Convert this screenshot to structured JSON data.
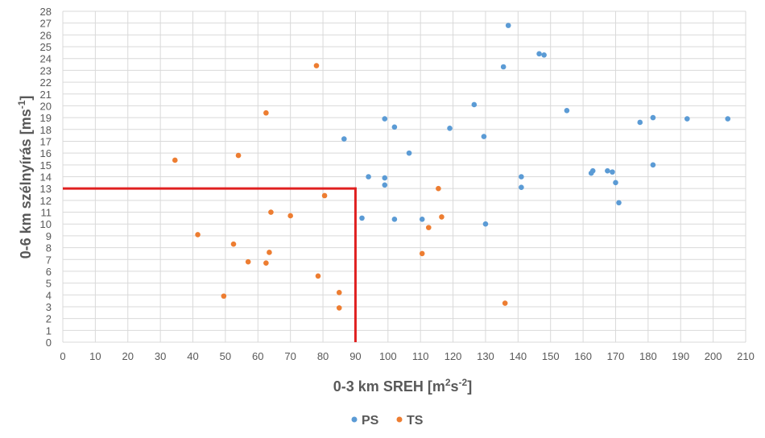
{
  "chart_data": {
    "type": "scatter",
    "title": "",
    "xlabel": "0-3 km SREH [m²s⁻²]",
    "xlabel_parts": {
      "prefix": "0-3 km SREH [m",
      "sup1": "2",
      "mid": "s",
      "sup2": "-2",
      "suffix": "]"
    },
    "ylabel": "0-6 km szélnyírás [ms⁻¹]",
    "ylabel_parts": {
      "prefix": "0-6 km szélnyírás [ms",
      "sup": "-1",
      "suffix": "]"
    },
    "xlim": [
      0,
      210
    ],
    "ylim": [
      0,
      28
    ],
    "x_ticks": [
      0,
      10,
      20,
      30,
      40,
      50,
      60,
      70,
      80,
      90,
      100,
      110,
      120,
      130,
      140,
      150,
      160,
      170,
      180,
      190,
      200,
      210
    ],
    "y_ticks": [
      0,
      1,
      2,
      3,
      4,
      5,
      6,
      7,
      8,
      9,
      10,
      11,
      12,
      13,
      14,
      15,
      16,
      17,
      18,
      19,
      20,
      21,
      22,
      23,
      24,
      25,
      26,
      27,
      28
    ],
    "grid": true,
    "legend": "bottom-center",
    "series": [
      {
        "name": "PS",
        "color": "#5b9bd5",
        "points": [
          [
            137,
            26.8
          ],
          [
            146.5,
            24.4
          ],
          [
            148,
            24.3
          ],
          [
            135.5,
            23.3
          ],
          [
            126.5,
            20.1
          ],
          [
            155,
            19.6
          ],
          [
            99,
            18.9
          ],
          [
            102,
            18.2
          ],
          [
            119,
            18.1
          ],
          [
            177.5,
            18.6
          ],
          [
            181.5,
            19.0
          ],
          [
            192,
            18.9
          ],
          [
            204.5,
            18.9
          ],
          [
            129.5,
            17.4
          ],
          [
            86.5,
            17.2
          ],
          [
            106.5,
            16.0
          ],
          [
            181.5,
            15.0
          ],
          [
            162.5,
            14.3
          ],
          [
            163,
            14.5
          ],
          [
            167.5,
            14.5
          ],
          [
            169,
            14.4
          ],
          [
            94,
            14.0
          ],
          [
            99,
            13.9
          ],
          [
            141,
            14.0
          ],
          [
            99,
            13.3
          ],
          [
            141,
            13.1
          ],
          [
            170,
            13.5
          ],
          [
            171,
            11.8
          ],
          [
            92,
            10.5
          ],
          [
            102,
            10.4
          ],
          [
            110.5,
            10.4
          ],
          [
            130,
            10.0
          ]
        ]
      },
      {
        "name": "TS",
        "color": "#ed7d31",
        "points": [
          [
            78,
            23.4
          ],
          [
            62.5,
            19.4
          ],
          [
            54,
            15.8
          ],
          [
            34.5,
            15.4
          ],
          [
            115.5,
            13.0
          ],
          [
            80.5,
            12.4
          ],
          [
            64,
            11.0
          ],
          [
            70,
            10.7
          ],
          [
            116.5,
            10.6
          ],
          [
            112.5,
            9.7
          ],
          [
            41.5,
            9.1
          ],
          [
            52.5,
            8.3
          ],
          [
            63.5,
            7.6
          ],
          [
            110.5,
            7.5
          ],
          [
            57,
            6.8
          ],
          [
            62.5,
            6.7
          ],
          [
            78.5,
            5.6
          ],
          [
            85,
            4.2
          ],
          [
            49.5,
            3.9
          ],
          [
            136,
            3.3
          ],
          [
            85,
            2.9
          ]
        ]
      }
    ],
    "threshold": {
      "x": 90,
      "y": 13,
      "color": "#e02020"
    }
  }
}
